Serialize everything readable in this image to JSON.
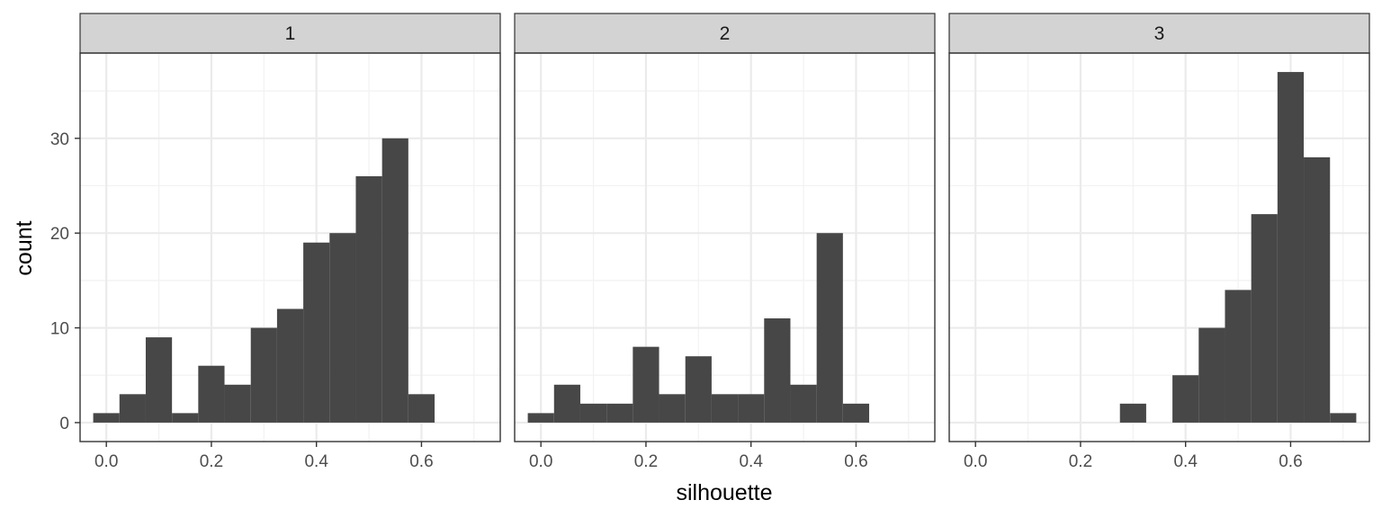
{
  "chart_data": {
    "type": "bar",
    "xlabel": "silhouette",
    "ylabel": "count",
    "xlim": [
      -0.05,
      0.75
    ],
    "ylim": [
      -2,
      39
    ],
    "x_ticks": [
      "0.0",
      "0.2",
      "0.4",
      "0.6"
    ],
    "y_ticks": [
      "0",
      "10",
      "20",
      "30"
    ],
    "x_tick_values": [
      0.0,
      0.2,
      0.4,
      0.6
    ],
    "y_tick_values": [
      0,
      10,
      20,
      30
    ],
    "bin_width": 0.05,
    "bar_color": "#474747",
    "strip_color": "#d3d3d3",
    "grid": true,
    "panels": [
      {
        "label": "1",
        "bins": [
          {
            "x": 0.0,
            "count": 1
          },
          {
            "x": 0.05,
            "count": 3
          },
          {
            "x": 0.1,
            "count": 9
          },
          {
            "x": 0.15,
            "count": 1
          },
          {
            "x": 0.2,
            "count": 6
          },
          {
            "x": 0.25,
            "count": 4
          },
          {
            "x": 0.3,
            "count": 10
          },
          {
            "x": 0.35,
            "count": 12
          },
          {
            "x": 0.4,
            "count": 19
          },
          {
            "x": 0.45,
            "count": 20
          },
          {
            "x": 0.5,
            "count": 26
          },
          {
            "x": 0.55,
            "count": 30
          },
          {
            "x": 0.6,
            "count": 3
          }
        ]
      },
      {
        "label": "2",
        "bins": [
          {
            "x": 0.0,
            "count": 1
          },
          {
            "x": 0.05,
            "count": 4
          },
          {
            "x": 0.1,
            "count": 2
          },
          {
            "x": 0.15,
            "count": 2
          },
          {
            "x": 0.2,
            "count": 8
          },
          {
            "x": 0.25,
            "count": 3
          },
          {
            "x": 0.3,
            "count": 7
          },
          {
            "x": 0.35,
            "count": 3
          },
          {
            "x": 0.4,
            "count": 3
          },
          {
            "x": 0.45,
            "count": 11
          },
          {
            "x": 0.5,
            "count": 4
          },
          {
            "x": 0.55,
            "count": 20
          },
          {
            "x": 0.6,
            "count": 2
          }
        ]
      },
      {
        "label": "3",
        "bins": [
          {
            "x": 0.3,
            "count": 2
          },
          {
            "x": 0.4,
            "count": 5
          },
          {
            "x": 0.45,
            "count": 10
          },
          {
            "x": 0.5,
            "count": 14
          },
          {
            "x": 0.55,
            "count": 22
          },
          {
            "x": 0.6,
            "count": 37
          },
          {
            "x": 0.65,
            "count": 28
          },
          {
            "x": 0.7,
            "count": 1
          }
        ]
      }
    ]
  }
}
